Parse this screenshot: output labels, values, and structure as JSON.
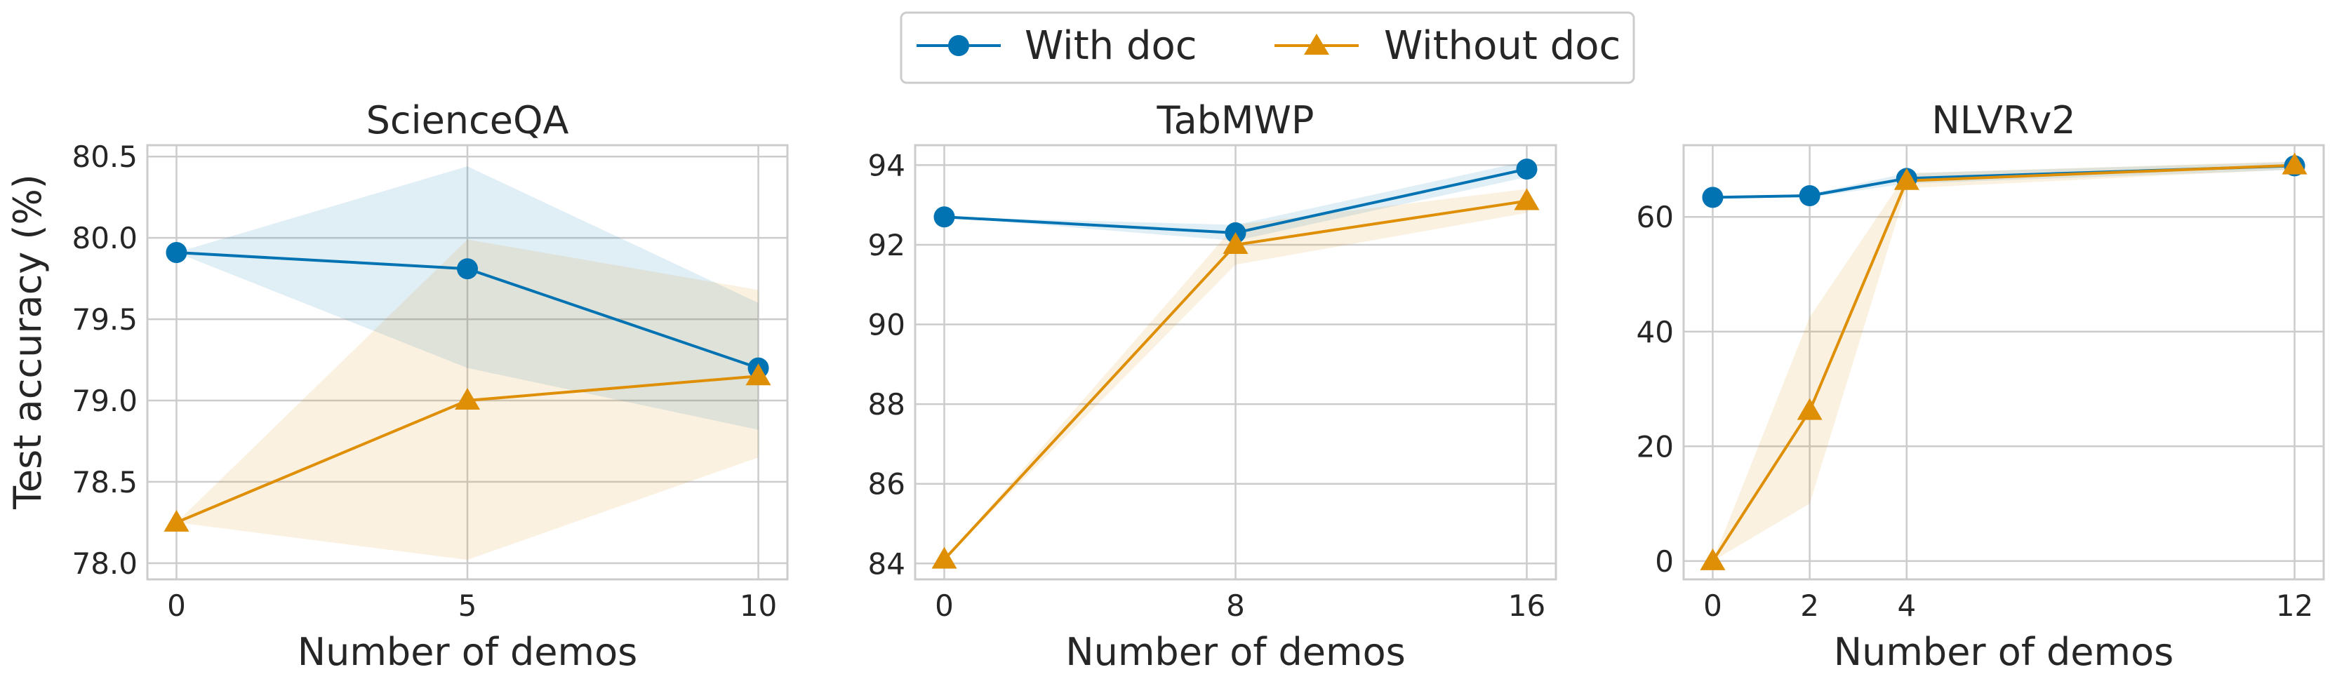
{
  "legend": {
    "entries": [
      {
        "label": "With doc",
        "color": "#0173b2",
        "marker": "circle"
      },
      {
        "label": "Without doc",
        "color": "#de8f05",
        "marker": "triangle"
      }
    ]
  },
  "ylabel": "Test accuracy (%)",
  "chart_data": [
    {
      "type": "line",
      "title": "ScienceQA",
      "xlabel": "Number of demos",
      "x": [
        0,
        5,
        10
      ],
      "xticks": [
        0,
        5,
        10
      ],
      "xlim": [
        -0.5,
        10.5
      ],
      "yticks": [
        78.0,
        78.5,
        79.0,
        79.5,
        80.0,
        80.5
      ],
      "ytick_labels": [
        "78.0",
        "78.5",
        "79.0",
        "79.5",
        "80.0",
        "80.5"
      ],
      "ylim": [
        77.9,
        80.57
      ],
      "grid": true,
      "series": [
        {
          "name": "With doc",
          "color": "#0173b2",
          "marker": "circle",
          "values": [
            79.91,
            79.81,
            79.2
          ],
          "band_low": [
            79.91,
            79.2,
            78.82
          ],
          "band_high": [
            79.91,
            80.44,
            79.6
          ]
        },
        {
          "name": "Without doc",
          "color": "#de8f05",
          "marker": "triangle",
          "values": [
            78.25,
            79.0,
            79.15
          ],
          "band_low": [
            78.25,
            78.02,
            78.65
          ],
          "band_high": [
            78.25,
            79.99,
            79.68
          ]
        }
      ]
    },
    {
      "type": "line",
      "title": "TabMWP",
      "xlabel": "Number of demos",
      "x": [
        0,
        8,
        16
      ],
      "xticks": [
        0,
        8,
        16
      ],
      "xlim": [
        -0.8,
        16.8
      ],
      "yticks": [
        84,
        86,
        88,
        90,
        92,
        94
      ],
      "ytick_labels": [
        "84",
        "86",
        "88",
        "90",
        "92",
        "94"
      ],
      "ylim": [
        83.6,
        94.5
      ],
      "grid": true,
      "series": [
        {
          "name": "With doc",
          "color": "#0173b2",
          "marker": "circle",
          "values": [
            92.7,
            92.3,
            93.9
          ],
          "band_low": [
            92.7,
            92.1,
            93.7
          ],
          "band_high": [
            92.7,
            92.5,
            94.1
          ]
        },
        {
          "name": "Without doc",
          "color": "#de8f05",
          "marker": "triangle",
          "values": [
            84.1,
            92.0,
            93.1
          ],
          "band_low": [
            84.1,
            91.5,
            92.8
          ],
          "band_high": [
            84.1,
            92.5,
            93.4
          ]
        }
      ]
    },
    {
      "type": "line",
      "title": "NLVRv2",
      "xlabel": "Number of demos",
      "x": [
        0,
        2,
        4,
        12
      ],
      "xticks": [
        0,
        2,
        4,
        12
      ],
      "xlim": [
        -0.6,
        12.6
      ],
      "yticks": [
        0,
        20,
        40,
        60
      ],
      "ytick_labels": [
        "0",
        "20",
        "40",
        "60"
      ],
      "ylim": [
        -3.2,
        72.5
      ],
      "grid": true,
      "series": [
        {
          "name": "With doc",
          "color": "#0173b2",
          "marker": "circle",
          "values": [
            63.4,
            63.7,
            66.7,
            68.9
          ],
          "band_low": [
            63.4,
            63.4,
            65.8,
            68.2
          ],
          "band_high": [
            63.4,
            64.0,
            67.6,
            69.6
          ]
        },
        {
          "name": "Without doc",
          "color": "#de8f05",
          "marker": "triangle",
          "values": [
            0.0,
            26.2,
            66.3,
            69.0
          ],
          "band_low": [
            0.0,
            10.0,
            65.0,
            68.3
          ],
          "band_high": [
            0.0,
            42.5,
            67.6,
            69.7
          ]
        }
      ]
    }
  ]
}
